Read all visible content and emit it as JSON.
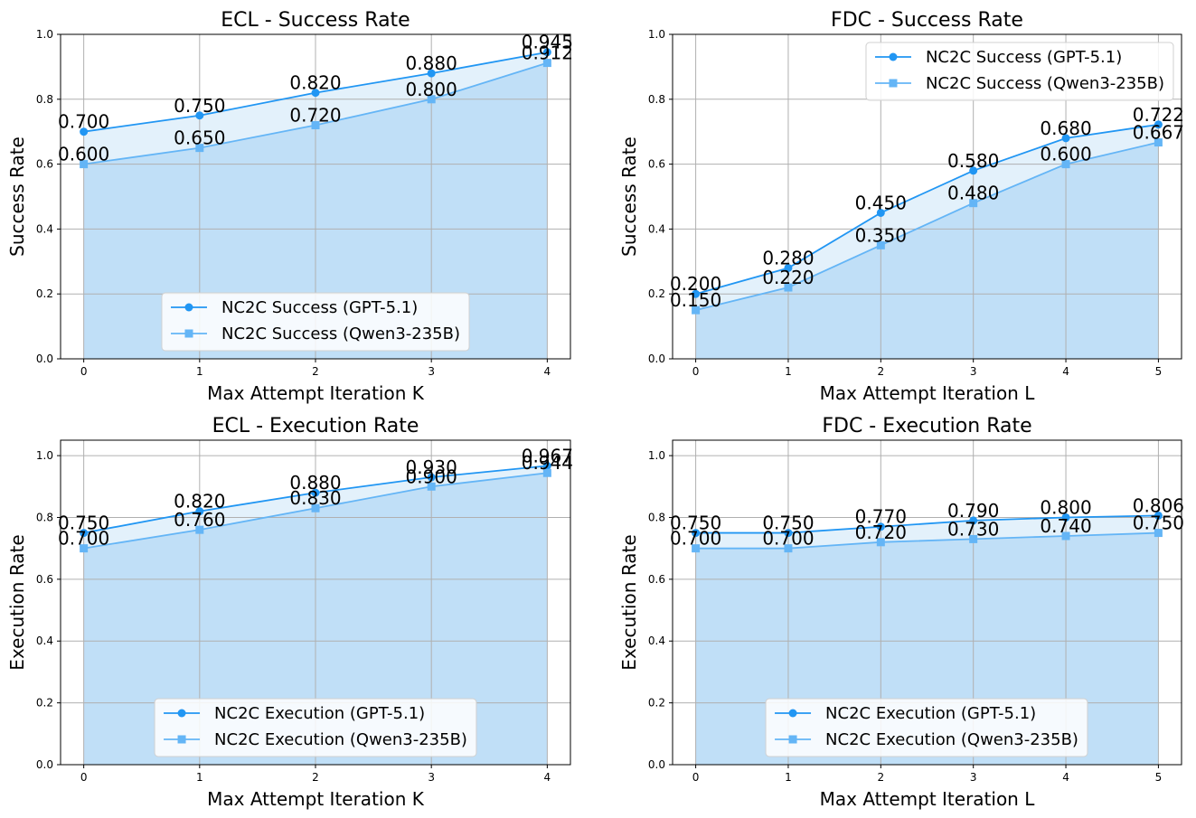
{
  "colors": {
    "gpt": "#2196f3",
    "qwen": "#64b5f6",
    "fill_under": "#c0dff7",
    "fill_between": "#e3f1fb",
    "grid": "#b0b0b0"
  },
  "chart_data": [
    {
      "type": "line",
      "title": "ECL - Success Rate",
      "xlabel": "Max Attempt Iteration K",
      "ylabel": "Success Rate",
      "x": [
        0,
        1,
        2,
        3,
        4
      ],
      "xlim": [
        -0.2,
        4.2
      ],
      "ylim": [
        0,
        1.0
      ],
      "yticks": [
        0.0,
        0.2,
        0.4,
        0.6,
        0.8,
        1.0
      ],
      "grid": true,
      "legend_loc": "lower-center",
      "series": [
        {
          "name": "NC2C Success (GPT-5.1)",
          "values": [
            0.7,
            0.75,
            0.82,
            0.88,
            0.945
          ],
          "marker": "circle",
          "labels": [
            "0.700",
            "0.750",
            "0.820",
            "0.880",
            "0.945"
          ]
        },
        {
          "name": "NC2C Success (Qwen3-235B)",
          "values": [
            0.6,
            0.65,
            0.72,
            0.8,
            0.912
          ],
          "marker": "square",
          "labels": [
            "0.600",
            "0.650",
            "0.720",
            "0.800",
            "0.912"
          ]
        }
      ]
    },
    {
      "type": "line",
      "title": "FDC - Success Rate",
      "xlabel": "Max Attempt Iteration L",
      "ylabel": "Success Rate",
      "x": [
        0,
        1,
        2,
        3,
        4,
        5
      ],
      "xlim": [
        -0.25,
        5.25
      ],
      "ylim": [
        0,
        1.0
      ],
      "yticks": [
        0.0,
        0.2,
        0.4,
        0.6,
        0.8,
        1.0
      ],
      "grid": true,
      "legend_loc": "upper-right",
      "series": [
        {
          "name": "NC2C Success (GPT-5.1)",
          "values": [
            0.2,
            0.28,
            0.45,
            0.58,
            0.68,
            0.722
          ],
          "marker": "circle",
          "labels": [
            "0.200",
            "0.280",
            "0.450",
            "0.580",
            "0.680",
            "0.722"
          ]
        },
        {
          "name": "NC2C Success (Qwen3-235B)",
          "values": [
            0.15,
            0.22,
            0.35,
            0.48,
            0.6,
            0.667
          ],
          "marker": "square",
          "labels": [
            "0.150",
            "0.220",
            "0.350",
            "0.480",
            "0.600",
            "0.667"
          ]
        }
      ]
    },
    {
      "type": "line",
      "title": "ECL - Execution Rate",
      "xlabel": "Max Attempt Iteration K",
      "ylabel": "Execution Rate",
      "x": [
        0,
        1,
        2,
        3,
        4
      ],
      "xlim": [
        -0.2,
        4.2
      ],
      "ylim": [
        0,
        1.05
      ],
      "yticks": [
        0.0,
        0.2,
        0.4,
        0.6,
        0.8,
        1.0
      ],
      "grid": true,
      "legend_loc": "lower-center",
      "series": [
        {
          "name": "NC2C Execution (GPT-5.1)",
          "values": [
            0.75,
            0.82,
            0.88,
            0.93,
            0.967
          ],
          "marker": "circle",
          "labels": [
            "0.750",
            "0.820",
            "0.880",
            "0.930",
            "0.967"
          ]
        },
        {
          "name": "NC2C Execution (Qwen3-235B)",
          "values": [
            0.7,
            0.76,
            0.83,
            0.9,
            0.944
          ],
          "marker": "square",
          "labels": [
            "0.700",
            "0.760",
            "0.830",
            "0.900",
            "0.944"
          ]
        }
      ]
    },
    {
      "type": "line",
      "title": "FDC - Execution Rate",
      "xlabel": "Max Attempt Iteration L",
      "ylabel": "Execution Rate",
      "x": [
        0,
        1,
        2,
        3,
        4,
        5
      ],
      "xlim": [
        -0.25,
        5.25
      ],
      "ylim": [
        0,
        1.05
      ],
      "yticks": [
        0.0,
        0.2,
        0.4,
        0.6,
        0.8,
        1.0
      ],
      "grid": true,
      "legend_loc": "lower-center",
      "series": [
        {
          "name": "NC2C Execution (GPT-5.1)",
          "values": [
            0.75,
            0.75,
            0.77,
            0.79,
            0.8,
            0.806
          ],
          "marker": "circle",
          "labels": [
            "0.750",
            "0.750",
            "0.770",
            "0.790",
            "0.800",
            "0.806"
          ]
        },
        {
          "name": "NC2C Execution (Qwen3-235B)",
          "values": [
            0.7,
            0.7,
            0.72,
            0.73,
            0.74,
            0.75
          ],
          "marker": "square",
          "labels": [
            "0.700",
            "0.700",
            "0.720",
            "0.730",
            "0.740",
            "0.750"
          ]
        }
      ]
    }
  ]
}
